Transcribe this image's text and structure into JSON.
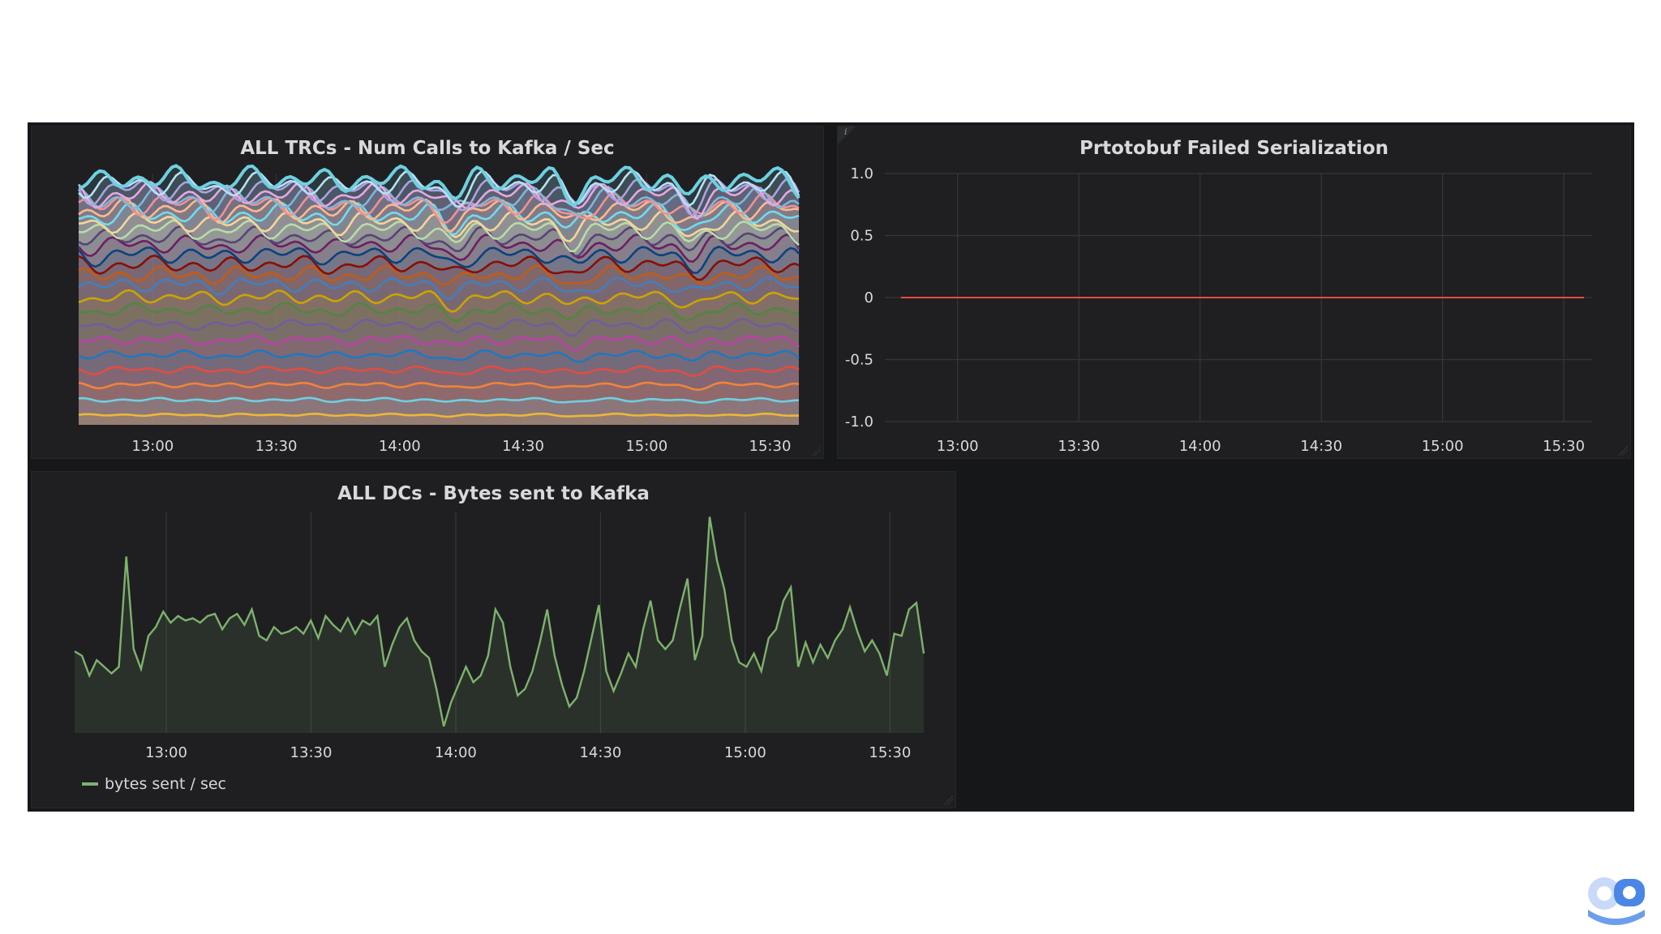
{
  "colors": {
    "page_bg": "#ffffff",
    "dashboard_bg": "#161719",
    "panel_bg": "#1f1f22",
    "grid": "#353638",
    "text": "#d8d9da",
    "bytes_series": "#7eb26d",
    "proto_series": "#e24d42"
  },
  "chart_data": [
    {
      "type": "line",
      "title": "ALL TRCs - Num Calls to Kafka / Sec",
      "x_ticks": [
        "13:00",
        "13:30",
        "14:00",
        "14:30",
        "15:00",
        "15:30"
      ],
      "x_range": [
        "12:42",
        "15:37"
      ],
      "stacked": true,
      "series_colors": [
        "#eab839",
        "#6ed0e0",
        "#ef843c",
        "#e24d42",
        "#1f78c1",
        "#ba43a9",
        "#705da0",
        "#508642",
        "#cca300",
        "#447ebc",
        "#c15c17",
        "#890f02",
        "#0a437c",
        "#6d1f62",
        "#584477",
        "#b7dbab",
        "#f4d598",
        "#70dbed",
        "#f9ba8f",
        "#f29191",
        "#82b5d8",
        "#e5a8e2",
        "#aea2e0",
        "#badff4",
        "#6ed0e0"
      ],
      "series_base_levels": [
        4,
        10,
        16,
        22,
        28,
        34,
        40,
        46,
        51,
        56,
        60,
        64,
        68,
        72,
        75,
        78,
        81,
        84,
        86,
        88,
        90,
        92,
        94,
        96,
        98
      ],
      "ylim": [
        0,
        100
      ]
    },
    {
      "type": "line",
      "title": "Prtotobuf Failed Serialization",
      "x_ticks": [
        "13:00",
        "13:30",
        "14:00",
        "14:30",
        "15:00",
        "15:30"
      ],
      "x_range": [
        "12:42",
        "15:37"
      ],
      "y_ticks": [
        "1.0",
        "0.5",
        "0",
        "-0.5",
        "-1.0"
      ],
      "ylim": [
        -1.0,
        1.0
      ],
      "series": [
        {
          "x": [
            "12:46",
            "14:00",
            "15:35"
          ],
          "values": [
            0,
            0,
            0
          ]
        }
      ]
    },
    {
      "type": "area",
      "title": "ALL DCs - Bytes sent to Kafka",
      "x_ticks": [
        "13:00",
        "13:30",
        "14:00",
        "14:30",
        "15:00",
        "15:30"
      ],
      "x_range": [
        "12:41",
        "15:37"
      ],
      "legend": "bottom-left",
      "ylim": [
        0,
        100
      ],
      "series": [
        {
          "name": "bytes sent / sec",
          "x_start": "12:41",
          "x_end": "15:37",
          "values": [
            37,
            35,
            26,
            33,
            30,
            27,
            30,
            80,
            38,
            29,
            44,
            48,
            55,
            50,
            53,
            51,
            52,
            50,
            53,
            54,
            47,
            52,
            54,
            49,
            56,
            44,
            42,
            48,
            45,
            46,
            48,
            45,
            51,
            43,
            53,
            49,
            46,
            52,
            45,
            51,
            49,
            53,
            30,
            40,
            48,
            52,
            42,
            37,
            34,
            20,
            3,
            14,
            22,
            30,
            23,
            26,
            35,
            56,
            50,
            30,
            17,
            20,
            28,
            41,
            56,
            35,
            22,
            12,
            16,
            28,
            43,
            58,
            28,
            19,
            27,
            36,
            30,
            47,
            60,
            42,
            38,
            42,
            57,
            70,
            33,
            44,
            98,
            78,
            65,
            42,
            32,
            30,
            36,
            28,
            43,
            47,
            60,
            66,
            30,
            41,
            32,
            40,
            34,
            42,
            47,
            57,
            46,
            37,
            42,
            36,
            26,
            45,
            44,
            56,
            59,
            36
          ]
        }
      ]
    }
  ],
  "legend": {
    "label": "bytes sent / sec"
  },
  "proto_info_icon": "i",
  "logo": {
    "icon": "robot-logo-icon"
  }
}
